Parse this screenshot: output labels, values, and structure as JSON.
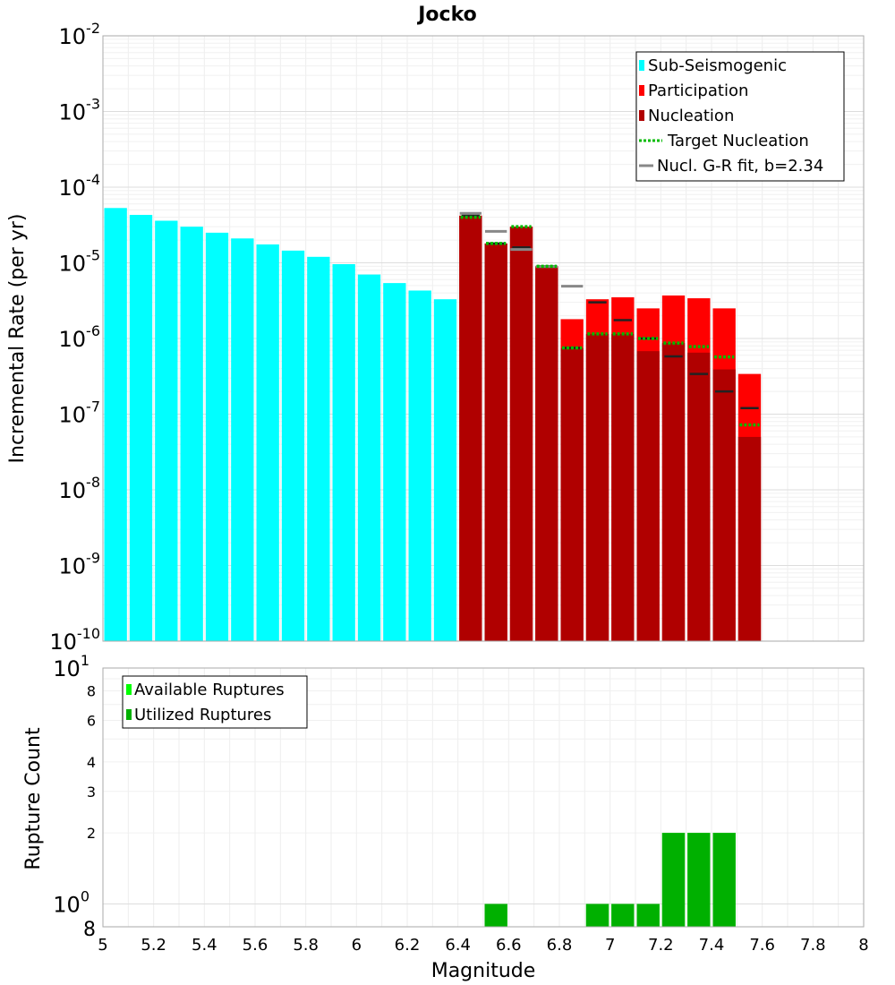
{
  "chart_data": [
    {
      "type": "bar",
      "title": "Jocko",
      "xlabel": "",
      "ylabel": "Incremental Rate (per yr)",
      "yscale": "log",
      "ylim": [
        1e-10,
        0.01
      ],
      "xlim": [
        5,
        8
      ],
      "y_ticks": [
        {
          "base": "10",
          "exp": "-10"
        },
        {
          "base": "10",
          "exp": "-9"
        },
        {
          "base": "10",
          "exp": "-8"
        },
        {
          "base": "10",
          "exp": "-7"
        },
        {
          "base": "10",
          "exp": "-6"
        },
        {
          "base": "10",
          "exp": "-5"
        },
        {
          "base": "10",
          "exp": "-4"
        },
        {
          "base": "10",
          "exp": "-3"
        },
        {
          "base": "10",
          "exp": "-2"
        }
      ],
      "bar_width": 0.1,
      "legend": {
        "position": "top-right",
        "entries": [
          "Sub-Seismogenic",
          "Participation",
          "Nucleation",
          "Target Nucleation",
          "Nucl. G-R fit, b=2.34"
        ]
      },
      "colors": {
        "sub_seismogenic": "#00ffff",
        "participation": "#ff0000",
        "nucleation": "#b00000",
        "target_nucleation": "#00bb00",
        "gr_fit": "#888888",
        "nucleation_marker": "#222222"
      },
      "series": [
        {
          "name": "Sub-Seismogenic",
          "x": [
            5.05,
            5.15,
            5.25,
            5.35,
            5.45,
            5.55,
            5.65,
            5.75,
            5.85,
            5.95,
            6.05,
            6.15,
            6.25,
            6.35
          ],
          "values": [
            5.3e-05,
            4.3e-05,
            3.6e-05,
            3e-05,
            2.5e-05,
            2.1e-05,
            1.75e-05,
            1.45e-05,
            1.2e-05,
            9.6e-06,
            7e-06,
            5.4e-06,
            4.3e-06,
            3.3e-06
          ]
        },
        {
          "name": "Participation",
          "x": [
            6.45,
            6.55,
            6.65,
            6.75,
            6.85,
            6.95,
            7.05,
            7.15,
            7.25,
            7.35,
            7.45,
            7.55
          ],
          "values": [
            4.2e-05,
            1.8e-05,
            3e-05,
            9e-06,
            1.8e-06,
            3.3e-06,
            3.5e-06,
            2.5e-06,
            3.7e-06,
            3.4e-06,
            2.5e-06,
            3.4e-07
          ]
        },
        {
          "name": "Nucleation",
          "x": [
            6.45,
            6.55,
            6.65,
            6.75,
            6.85,
            6.95,
            7.05,
            7.15,
            7.25,
            7.35,
            7.45,
            7.55
          ],
          "values": [
            4.2e-05,
            1.8e-05,
            3e-05,
            9e-06,
            7.5e-07,
            1.15e-06,
            1.15e-06,
            6.8e-07,
            8.7e-07,
            6.5e-07,
            3.9e-07,
            5e-08
          ]
        },
        {
          "name": "Nucleation marker",
          "x": [
            6.45,
            6.55,
            6.65,
            6.75,
            6.85,
            6.95,
            7.05,
            7.15,
            7.25,
            7.35,
            7.45,
            7.55
          ],
          "values": [
            4.2e-05,
            1.8e-05,
            1.6e-05,
            9e-06,
            7.5e-07,
            3e-06,
            1.75e-06,
            1e-06,
            5.8e-07,
            3.4e-07,
            2e-07,
            1.2e-07
          ]
        },
        {
          "name": "Target Nucleation",
          "x": [
            6.45,
            6.55,
            6.65,
            6.75,
            6.85,
            6.95,
            7.05,
            7.15,
            7.25,
            7.35,
            7.45,
            7.55
          ],
          "values": [
            4e-05,
            1.8e-05,
            3e-05,
            9e-06,
            7.5e-07,
            1.15e-06,
            1.15e-06,
            1e-06,
            8.7e-07,
            7.8e-07,
            5.7e-07,
            7.2e-08
          ]
        },
        {
          "name": "Nucl. G-R fit, b=2.34",
          "x": [
            6.45,
            6.55,
            6.65,
            6.75,
            6.85
          ],
          "values": [
            4.5e-05,
            2.6e-05,
            1.5e-05,
            8.9e-06,
            4.9e-06
          ]
        }
      ]
    },
    {
      "type": "bar",
      "title": "",
      "xlabel": "Magnitude",
      "ylabel": "Rupture Count",
      "yscale": "log",
      "ylim": [
        0.8,
        10
      ],
      "xlim": [
        5,
        8
      ],
      "x_ticks": [
        "5",
        "5.2",
        "5.4",
        "5.6",
        "5.8",
        "6",
        "6.2",
        "6.4",
        "6.6",
        "6.8",
        "7",
        "7.2",
        "7.4",
        "7.6",
        "7.8",
        "8"
      ],
      "y_minor_ticks": [
        {
          "label": "8",
          "value": 8
        },
        {
          "label": "6",
          "value": 6
        },
        {
          "label": "4",
          "value": 4
        },
        {
          "label": "3",
          "value": 3
        },
        {
          "label": "2",
          "value": 2
        }
      ],
      "y_bottom_label": "8",
      "y_major_ticks": [
        {
          "base": "10",
          "exp": "1",
          "value": 10
        },
        {
          "base": "10",
          "exp": "0",
          "value": 1
        }
      ],
      "bar_width": 0.1,
      "legend": {
        "position": "top-left",
        "entries": [
          "Available Ruptures",
          "Utilized Ruptures"
        ]
      },
      "colors": {
        "available": "#00ff00",
        "utilized": "#00b000"
      },
      "series": [
        {
          "name": "Available Ruptures",
          "x": [
            6.55,
            6.95,
            7.05,
            7.15,
            7.25,
            7.35,
            7.45
          ],
          "values": [
            1,
            1,
            1,
            1,
            2,
            2,
            2
          ]
        },
        {
          "name": "Utilized Ruptures",
          "x": [
            6.55,
            6.95,
            7.05,
            7.15,
            7.25,
            7.35,
            7.45
          ],
          "values": [
            1,
            1,
            1,
            1,
            2,
            2,
            2
          ]
        }
      ]
    }
  ]
}
